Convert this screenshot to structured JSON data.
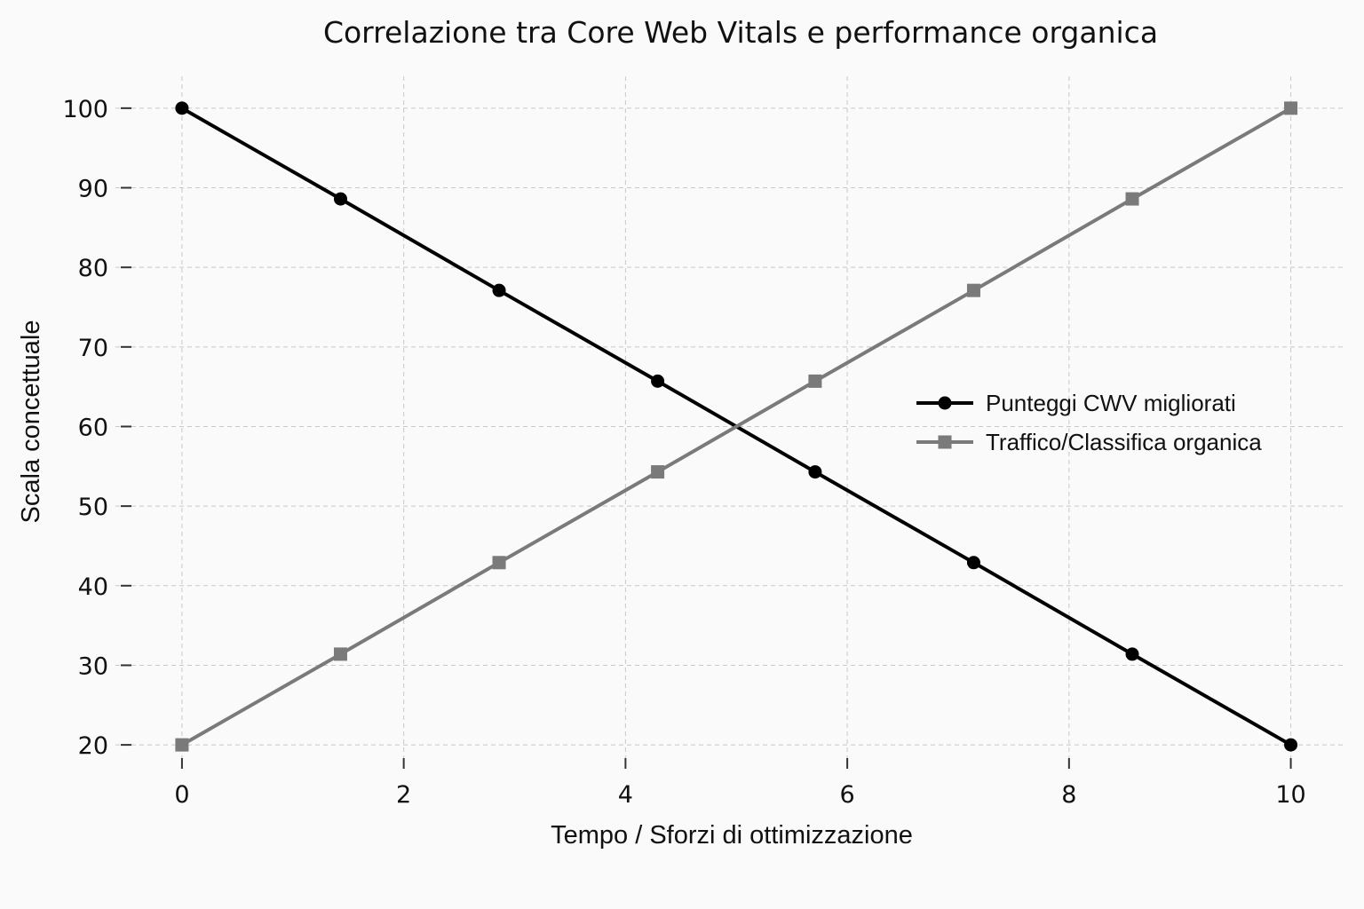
{
  "chart_data": {
    "type": "line",
    "title": "Correlazione tra Core Web Vitals e performance organica",
    "xlabel": "Tempo / Sforzi di ottimizzazione",
    "ylabel": "Scala concettuale",
    "xlim": [
      -0.6,
      10.5
    ],
    "ylim": [
      17,
      104
    ],
    "xticks": [
      0,
      2,
      4,
      6,
      8,
      10
    ],
    "yticks": [
      20,
      30,
      40,
      50,
      60,
      70,
      80,
      90,
      100
    ],
    "grid": true,
    "legend_position": "center-right",
    "x": [
      0,
      1.43,
      2.86,
      4.29,
      5.71,
      7.14,
      8.57,
      10
    ],
    "series": [
      {
        "name": "Punteggi CWV migliorati",
        "color": "#000000",
        "marker": "circle",
        "values": [
          100,
          88.6,
          77.1,
          65.7,
          54.3,
          42.9,
          31.4,
          20
        ]
      },
      {
        "name": "Traffico/Classifica organica",
        "color": "#7a7a7a",
        "marker": "square",
        "values": [
          20,
          31.4,
          42.9,
          54.3,
          65.7,
          77.1,
          88.6,
          100
        ]
      }
    ]
  }
}
